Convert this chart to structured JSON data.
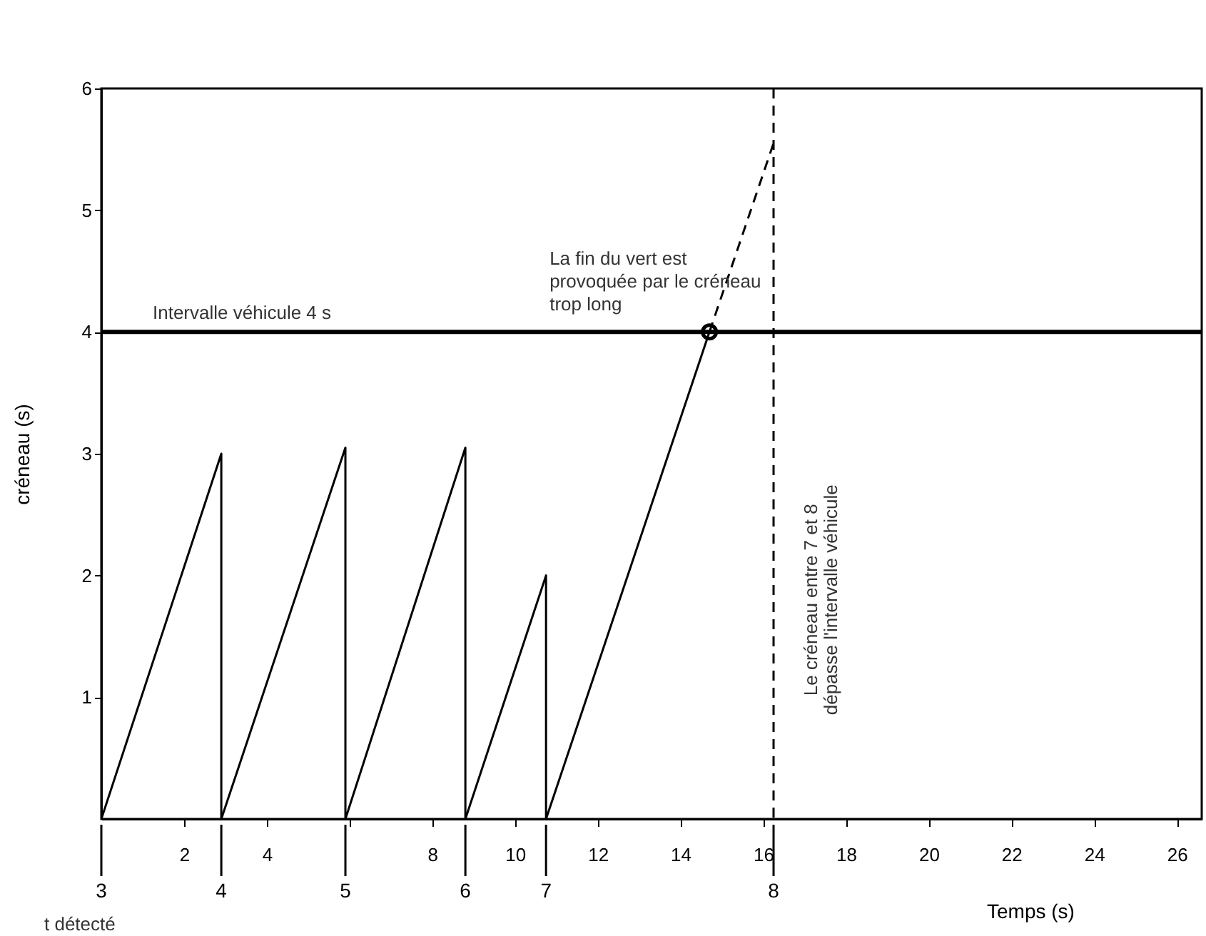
{
  "chart_data": {
    "type": "line",
    "xlabel": "Temps (s)",
    "ylabel": "créneau (s)",
    "xlim": [
      0,
      26.6
    ],
    "ylim": [
      0,
      6
    ],
    "xticks": [
      2,
      4,
      {
        "value": 6,
        "label": null
      },
      8,
      10,
      12,
      14,
      16,
      18,
      20,
      22,
      24,
      26
    ],
    "yticks": [
      1,
      2,
      3,
      4,
      5,
      6
    ],
    "grid": false,
    "series": [
      {
        "color": "#000000",
        "line_style": "solid",
        "x": [
          0,
          2.9,
          2.9,
          5.9,
          5.9,
          8.8,
          8.8,
          10.75,
          10.75,
          14.7
        ],
        "values": [
          0,
          3,
          0,
          3.05,
          0,
          3.05,
          0,
          2,
          0,
          4
        ]
      },
      {
        "color": "#000000",
        "line_style": "dashed",
        "x": [
          14.7,
          16.25
        ],
        "values": [
          4,
          5.55
        ]
      },
      {
        "type": "scatter",
        "marker": "circle",
        "color": "#000000",
        "x": [
          14.7
        ],
        "values": [
          4
        ]
      }
    ],
    "ref_lines": [
      {
        "axis": "y",
        "value": 4,
        "label": "Intervalle véhicule 4 s",
        "color": "#000000"
      },
      {
        "axis": "x",
        "value": 16.25,
        "line_style": "dashed",
        "color": "#000000"
      }
    ],
    "annotations": [
      {
        "text": "La fin du vert est\nprovoquée par le créneau\n trop long",
        "x": 14.7,
        "y": 4
      },
      "Le créneau entre 7 et 8\ndépasse l'intervalle véhicule",
      {
        "text": "3",
        "x": 0,
        "y": 0
      },
      {
        "text": "4",
        "x": 2.9,
        "y": 0
      },
      {
        "text": "5",
        "x": 5.9,
        "y": 0
      },
      {
        "text": "6",
        "x": 8.8,
        "y": 0
      },
      {
        "text": "7",
        "x": 10.75,
        "y": 0
      },
      {
        "text": "8",
        "x": 16.25,
        "y": 0
      },
      "t détecté"
    ]
  }
}
